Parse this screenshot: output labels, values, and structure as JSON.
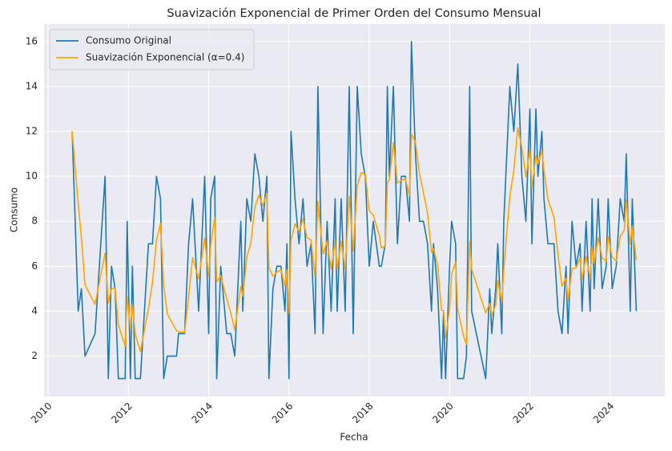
{
  "chart_data": {
    "type": "line",
    "title": "Suavización Exponencial de Primer Orden del Consumo Mensual",
    "x_label": "Fecha",
    "y_label": "Consumo",
    "x": [
      2010.6,
      2010.75,
      2010.83,
      2010.92,
      2011.17,
      2011.42,
      2011.5,
      2011.58,
      2011.67,
      2011.75,
      2011.92,
      2011.97,
      2012.05,
      2012.1,
      2012.17,
      2012.3,
      2012.5,
      2012.6,
      2012.7,
      2012.8,
      2012.88,
      2012.97,
      2013.2,
      2013.25,
      2013.4,
      2013.5,
      2013.6,
      2013.75,
      2013.9,
      2014.0,
      2014.05,
      2014.15,
      2014.2,
      2014.3,
      2014.45,
      2014.55,
      2014.65,
      2014.8,
      2014.85,
      2014.95,
      2015.05,
      2015.15,
      2015.25,
      2015.35,
      2015.45,
      2015.5,
      2015.6,
      2015.7,
      2015.8,
      2015.9,
      2015.95,
      2016.0,
      2016.05,
      2016.15,
      2016.25,
      2016.35,
      2016.45,
      2016.55,
      2016.65,
      2016.72,
      2016.85,
      2016.95,
      2017.05,
      2017.15,
      2017.2,
      2017.3,
      2017.4,
      2017.5,
      2017.6,
      2017.7,
      2017.8,
      2017.9,
      2018.0,
      2018.1,
      2018.25,
      2018.3,
      2018.4,
      2018.45,
      2018.5,
      2018.6,
      2018.7,
      2018.8,
      2018.9,
      2019.0,
      2019.05,
      2019.15,
      2019.25,
      2019.35,
      2019.45,
      2019.55,
      2019.6,
      2019.7,
      2019.8,
      2019.85,
      2019.9,
      2020.0,
      2020.05,
      2020.15,
      2020.2,
      2020.35,
      2020.42,
      2020.5,
      2020.55,
      2020.9,
      2021.0,
      2021.05,
      2021.15,
      2021.2,
      2021.3,
      2021.35,
      2021.5,
      2021.6,
      2021.7,
      2021.8,
      2021.9,
      2022.0,
      2022.05,
      2022.15,
      2022.2,
      2022.3,
      2022.35,
      2022.45,
      2022.6,
      2022.7,
      2022.8,
      2022.9,
      2022.95,
      2023.05,
      2023.15,
      2023.25,
      2023.3,
      2023.4,
      2023.5,
      2023.55,
      2023.6,
      2023.7,
      2023.8,
      2023.9,
      2023.95,
      2024.05,
      2024.15,
      2024.25,
      2024.35,
      2024.4,
      2024.5,
      2024.55,
      2024.65
    ],
    "series": [
      {
        "name": "Consumo Original",
        "color": "#1f77b4",
        "values": [
          12,
          4,
          5,
          2,
          3,
          10,
          1,
          6,
          5,
          1,
          1,
          8,
          1,
          6,
          1,
          1,
          7,
          7,
          10,
          9,
          1,
          2,
          2,
          3,
          3,
          7,
          9,
          4,
          10,
          3,
          9,
          10,
          1,
          6,
          3,
          3,
          2,
          8,
          4,
          9,
          8,
          11,
          10,
          8,
          10,
          1,
          5,
          6,
          6,
          4,
          7,
          1,
          12,
          9,
          7,
          9,
          6,
          7,
          3,
          14,
          3,
          8,
          4,
          9,
          4,
          9,
          4,
          14,
          3,
          14,
          11,
          10,
          6,
          8,
          6,
          6,
          7,
          14,
          10,
          14,
          7,
          10,
          10,
          8,
          16,
          11,
          8,
          8,
          7,
          4,
          7,
          5,
          1,
          4,
          1,
          6,
          8,
          7,
          1,
          1,
          2,
          14,
          4,
          1,
          5,
          3,
          5,
          7,
          3,
          8,
          14,
          12,
          15,
          10,
          8,
          13,
          7,
          13,
          10,
          12,
          9,
          7,
          7,
          4,
          3,
          6,
          3,
          8,
          6,
          7,
          4,
          8,
          4,
          9,
          5,
          9,
          5,
          6,
          9,
          5,
          6,
          9,
          8,
          11,
          4,
          9,
          4
        ]
      },
      {
        "name": "Suavización Exponencial (α=0.4)",
        "color": "#ffa500",
        "values": [
          12,
          8.8,
          7.28,
          5.17,
          4.3,
          6.58,
          4.35,
          5.01,
          5.01,
          3.4,
          2.44,
          4.66,
          3.2,
          4.32,
          2.99,
          2.2,
          4.12,
          5.27,
          7.16,
          7.9,
          5.14,
          3.88,
          3.13,
          3.08,
          3.05,
          4.63,
          6.38,
          5.43,
          7.26,
          5.56,
          6.93,
          8.16,
          5.3,
          5.58,
          4.55,
          3.93,
          3.16,
          5.1,
          4.66,
          6.4,
          7.04,
          8.62,
          9.17,
          8.7,
          9.22,
          5.93,
          5.56,
          5.74,
          5.84,
          5.1,
          5.86,
          3.92,
          7.15,
          7.89,
          7.53,
          8.12,
          7.27,
          7.16,
          5.5,
          8.9,
          6.54,
          7.12,
          5.87,
          7.12,
          5.87,
          7.12,
          5.87,
          9.12,
          6.67,
          9.6,
          10.16,
          10.1,
          8.46,
          8.28,
          7.37,
          6.82,
          6.89,
          9.73,
          9.84,
          11.5,
          9.7,
          9.82,
          9.89,
          9.13,
          11.88,
          11.53,
          10.12,
          9.27,
          8.36,
          6.62,
          6.77,
          6.06,
          4.04,
          4.02,
          2.81,
          4.09,
          5.65,
          6.19,
          4.11,
          2.87,
          2.52,
          7.11,
          5.87,
          3.92,
          4.35,
          3.81,
          4.29,
          5.37,
          4.42,
          5.85,
          9.11,
          10.27,
          12.16,
          11.3,
          9.98,
          11.19,
          9.51,
          10.91,
          10.55,
          11.13,
          10.28,
          8.97,
          8.18,
          6.51,
          5.11,
          5.47,
          4.48,
          5.89,
          5.93,
          6.36,
          5.42,
          6.45,
          5.47,
          6.88,
          6.13,
          7.28,
          6.37,
          6.22,
          7.33,
          6.4,
          6.24,
          7.34,
          7.6,
          8.96,
          6.98,
          7.79,
          6.27
        ]
      }
    ],
    "xlim": [
      2009.9,
      2025.36
    ],
    "ylim": [
      0.2,
      16.78
    ],
    "xticks": [
      2010,
      2012,
      2014,
      2016,
      2018,
      2020,
      2022,
      2024
    ],
    "yticks": [
      2,
      4,
      6,
      8,
      10,
      12,
      14,
      16
    ],
    "grid": true,
    "legend": "upper left"
  }
}
